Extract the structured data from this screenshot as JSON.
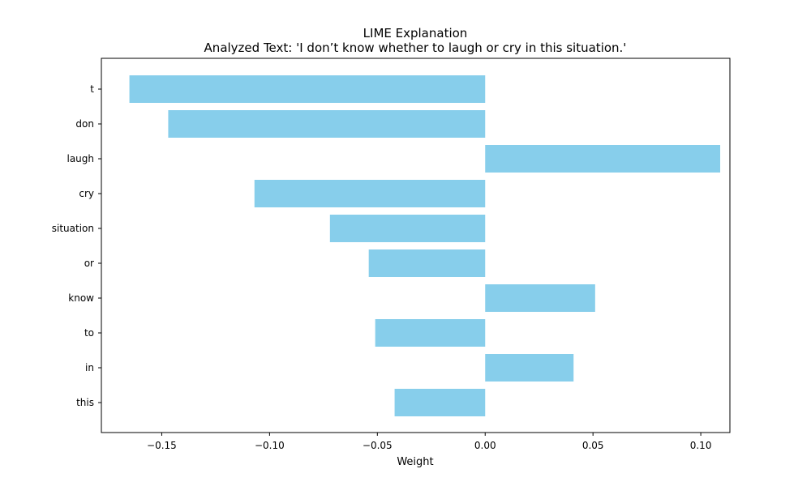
{
  "chart_data": {
    "type": "bar",
    "orientation": "horizontal",
    "title": "LIME Explanation",
    "subtitle": "Analyzed Text: 'I don’t know whether to laugh or cry in this situation.'",
    "xlabel": "Weight",
    "ylabel": "",
    "categories": [
      "t",
      "don",
      "laugh",
      "cry",
      "situation",
      "or",
      "know",
      "to",
      "in",
      "this"
    ],
    "values": [
      -0.165,
      -0.147,
      0.109,
      -0.107,
      -0.072,
      -0.054,
      0.051,
      -0.051,
      0.041,
      -0.042
    ],
    "xlim": [
      -0.178,
      0.1135
    ],
    "xticks": [
      -0.15,
      -0.1,
      -0.05,
      0.0,
      0.05,
      0.1
    ],
    "xtick_labels": [
      "−0.15",
      "−0.10",
      "−0.05",
      "0.00",
      "0.05",
      "0.10"
    ],
    "bar_color": "#87ceeb",
    "grid": false,
    "legend": "none"
  }
}
